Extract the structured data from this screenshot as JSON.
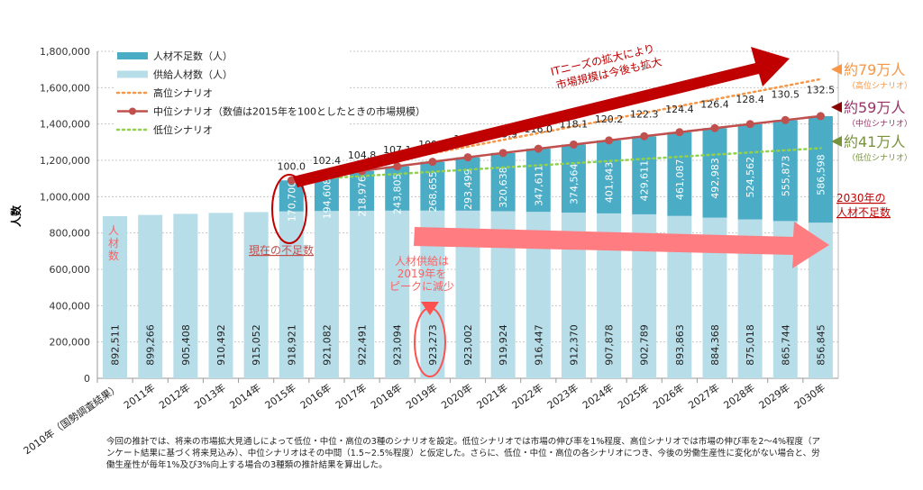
{
  "chart_data": {
    "type": "bar",
    "stacked": true,
    "ylabel": "人数",
    "ylim": [
      0,
      1800000
    ],
    "yticks": [
      "0",
      "200,000",
      "400,000",
      "600,000",
      "800,000",
      "1,000,000",
      "1,200,000",
      "1,400,000",
      "1,600,000",
      "1,800,000"
    ],
    "grid": true,
    "legend_position": "top-left",
    "categories": [
      "2010年（国勢調査結果）",
      "2011年",
      "2012年",
      "2013年",
      "2014年",
      "2015年",
      "2016年",
      "2017年",
      "2018年",
      "2019年",
      "2020年",
      "2021年",
      "2022年",
      "2023年",
      "2024年",
      "2025年",
      "2026年",
      "2027年",
      "2028年",
      "2029年",
      "2030年"
    ],
    "series": [
      {
        "name": "供給人材数（人）",
        "color": "#b7dde8",
        "values": [
          892511,
          899266,
          905408,
          910492,
          915052,
          918921,
          921082,
          922491,
          923094,
          923273,
          923002,
          919924,
          916447,
          912370,
          907878,
          902789,
          893863,
          884368,
          875018,
          865744,
          856845
        ],
        "labels": [
          "892,511",
          "899,266",
          "905,408",
          "910,492",
          "915,052",
          "918,921",
          "921,082",
          "922,491",
          "923,094",
          "923,273",
          "923,002",
          "919,924",
          "916,447",
          "912,370",
          "907,878",
          "902,789",
          "893,863",
          "884,368",
          "875,018",
          "865,744",
          "856,845"
        ]
      },
      {
        "name": "人材不足数（人）",
        "color": "#4bacc6",
        "values": [
          null,
          null,
          null,
          null,
          null,
          170700,
          194608,
          218976,
          243805,
          268655,
          293499,
          320638,
          347611,
          374564,
          401843,
          429611,
          461087,
          492983,
          524562,
          555873,
          586598
        ],
        "labels": [
          "",
          "",
          "",
          "",
          "",
          "170,700",
          "194,608",
          "218,976",
          "243,805",
          "268,655",
          "293,499",
          "320,638",
          "347,611",
          "374,564",
          "401,843",
          "429,611",
          "461,087",
          "492,983",
          "524,562",
          "555,873",
          "586,598"
        ]
      }
    ],
    "lines": [
      {
        "name": "高位シナリオ",
        "color": "#f79646",
        "style": "dotted",
        "from_year_index": 5,
        "start": 1089621,
        "end": 1647000
      },
      {
        "name": "中位シナリオ（数値は2015年を100としたときの市場規模）",
        "color": "#c0504d",
        "style": "solid-marker",
        "index_labels": [
          "100.0",
          "102.4",
          "104.8",
          "107.1",
          "109.4",
          "111.6",
          "113.9",
          "116.0",
          "118.1",
          "120.2",
          "122.3",
          "124.4",
          "126.4",
          "128.4",
          "130.5",
          "132.5"
        ]
      },
      {
        "name": "低位シナリオ",
        "color": "#92d050",
        "style": "dotted",
        "from_year_index": 5,
        "start": 1089621,
        "end": 1267000
      }
    ],
    "annotations": {
      "arrow_up_line1": "ITニーズの拡大により",
      "arrow_up_line2": "市場規模は今後も拡大",
      "high_value": "約79万人",
      "high_sub": "（高位シナリオ）",
      "mid_value": "約59万人",
      "mid_sub": "（中位シナリオ）",
      "low_value": "約41万人",
      "low_sub": "（低位シナリオ）",
      "current_shortage": "現在の不足数",
      "shortage_2030_line1": "2030年の",
      "shortage_2030_line2": "人材不足数",
      "supply_peak_line1": "人材供給は",
      "supply_peak_line2": "2019年を",
      "supply_peak_line3": "ピークに減少",
      "people_count": [
        "人",
        "材",
        "数"
      ]
    }
  },
  "footnote": "今回の推計では、将来の市場拡大見通しによって低位・中位・高位の3種のシナリオを設定。低位シナリオでは市場の伸び率を1%程度、高位シナリオでは市場の伸び率を2～4%程度（アンケート結果に基づく将来見込み）、中位シナリオはその中間（1.5~2.5%程度）と仮定した。さらに、低位・中位・高位の各シナリオにつき、今後の労働生産性に変化がない場合と、労働生産性が毎年1%及び3%向上する場合の3種類の推計結果を算出した。"
}
